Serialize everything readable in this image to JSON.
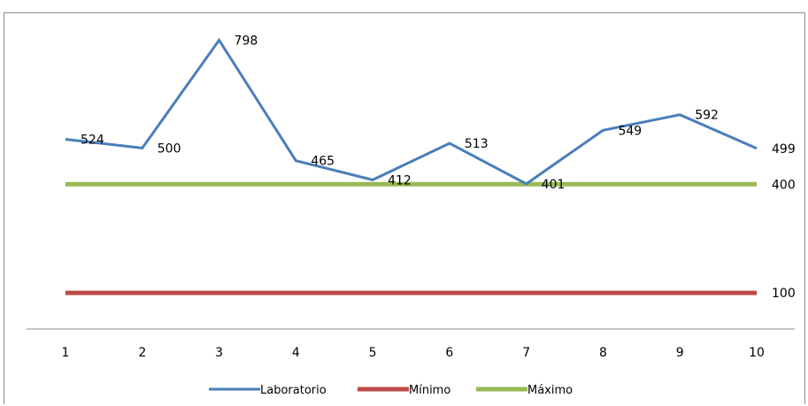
{
  "chart_data": {
    "type": "line",
    "x": [
      "1",
      "2",
      "3",
      "4",
      "5",
      "6",
      "7",
      "8",
      "9",
      "10"
    ],
    "series": [
      {
        "name": "Laboratorio",
        "color": "#4a7ebb",
        "values": [
          524,
          500,
          798,
          465,
          412,
          513,
          401,
          549,
          592,
          499
        ],
        "labels": [
          "524",
          "500",
          "798",
          "465",
          "412",
          "513",
          "401",
          "549",
          "592",
          "499"
        ]
      },
      {
        "name": "Mínimo",
        "color": "#be4b48",
        "values": [
          100,
          100,
          100,
          100,
          100,
          100,
          100,
          100,
          100,
          100
        ],
        "end_label": "100"
      },
      {
        "name": "Máximo",
        "color": "#98b954",
        "values": [
          400,
          400,
          400,
          400,
          400,
          400,
          400,
          400,
          400,
          400
        ],
        "end_label": "400"
      }
    ],
    "legend_position": "bottom",
    "grid": false,
    "y_axis_visible": false,
    "ylim": [
      -0.0,
      860
    ]
  }
}
